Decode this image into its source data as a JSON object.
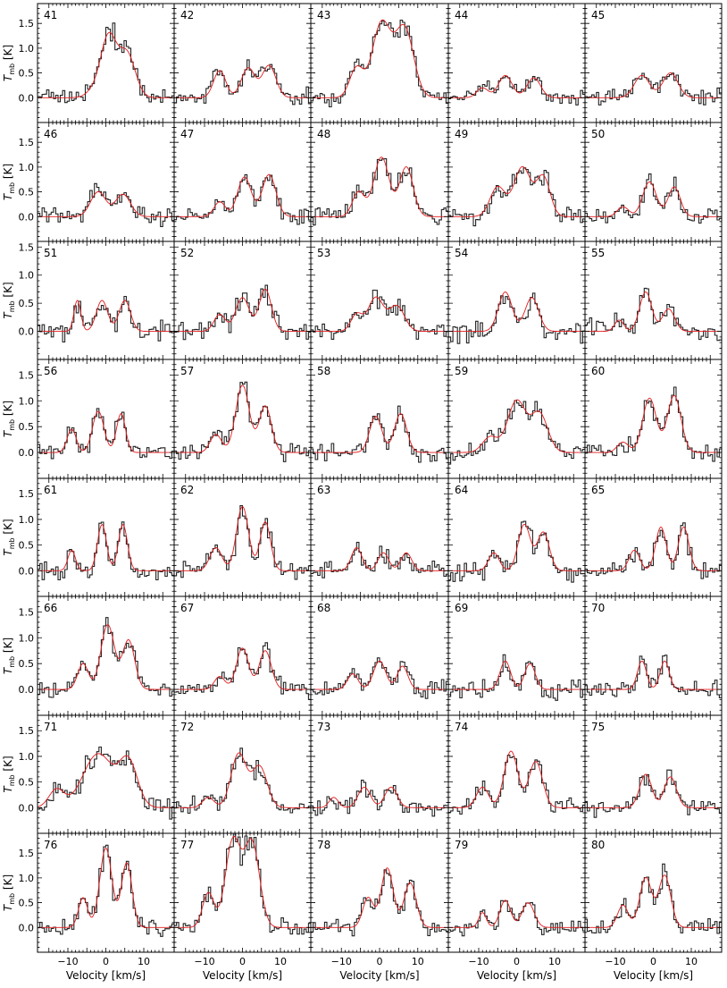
{
  "chart_data": {
    "type": "line",
    "layout": {
      "rows": 8,
      "cols": 5
    },
    "panels": [
      {
        "id": "41",
        "ylim": [
          -0.5,
          1.9
        ],
        "peaks": [
          [
            1.2,
            0.7,
            2.0
          ],
          [
            0.9,
            5.5,
            2.2
          ],
          [
            0.15,
            -3,
            2
          ]
        ]
      },
      {
        "id": "42",
        "ylim": [
          -0.5,
          1.9
        ],
        "peaks": [
          [
            0.55,
            -6,
            1.6
          ],
          [
            0.6,
            1.5,
            1.8
          ],
          [
            0.65,
            7,
            1.8
          ]
        ]
      },
      {
        "id": "43",
        "ylim": [
          -0.5,
          1.9
        ],
        "peaks": [
          [
            1.5,
            0.5,
            2.4
          ],
          [
            1.4,
            6.5,
            2.4
          ],
          [
            0.6,
            -6,
            1.8
          ]
        ]
      },
      {
        "id": "44",
        "ylim": [
          -0.5,
          1.9
        ],
        "peaks": [
          [
            0.45,
            -3,
            1.8
          ],
          [
            0.4,
            4.5,
            1.8
          ],
          [
            0.2,
            -9,
            1.5
          ]
        ]
      },
      {
        "id": "45",
        "ylim": [
          -0.5,
          1.9
        ],
        "peaks": [
          [
            0.45,
            -3,
            2.0
          ],
          [
            0.5,
            4.5,
            2.0
          ]
        ]
      },
      {
        "id": "46",
        "ylim": [
          -0.5,
          1.9
        ],
        "peaks": [
          [
            0.5,
            -2,
            2.0
          ],
          [
            0.45,
            4.5,
            2.0
          ]
        ]
      },
      {
        "id": "47",
        "ylim": [
          -0.5,
          1.9
        ],
        "peaks": [
          [
            0.8,
            0.5,
            1.8
          ],
          [
            0.85,
            7,
            1.8
          ],
          [
            0.3,
            -6,
            1.5
          ]
        ]
      },
      {
        "id": "48",
        "ylim": [
          -0.5,
          1.9
        ],
        "peaks": [
          [
            1.2,
            0.5,
            2.0
          ],
          [
            1.0,
            7,
            1.8
          ],
          [
            0.5,
            -5.5,
            1.6
          ]
        ]
      },
      {
        "id": "49",
        "ylim": [
          -0.5,
          1.9
        ],
        "peaks": [
          [
            0.6,
            -5,
            2.0
          ],
          [
            1.0,
            1.5,
            2.2
          ],
          [
            0.8,
            7,
            1.8
          ]
        ]
      },
      {
        "id": "50",
        "ylim": [
          -0.5,
          1.9
        ],
        "peaks": [
          [
            0.7,
            -1,
            1.8
          ],
          [
            0.6,
            5.5,
            1.6
          ],
          [
            0.2,
            -8,
            1.5
          ]
        ]
      },
      {
        "id": "51",
        "ylim": [
          -0.5,
          1.6
        ],
        "peaks": [
          [
            0.55,
            -7.5,
            0.9
          ],
          [
            0.55,
            -1,
            1.5
          ],
          [
            0.55,
            5,
            1.5
          ]
        ]
      },
      {
        "id": "52",
        "ylim": [
          -0.5,
          1.6
        ],
        "peaks": [
          [
            0.6,
            0,
            1.8
          ],
          [
            0.75,
            6,
            1.6
          ],
          [
            0.3,
            -6,
            1.5
          ]
        ]
      },
      {
        "id": "53",
        "ylim": [
          -0.5,
          1.6
        ],
        "peaks": [
          [
            0.6,
            -1,
            2.0
          ],
          [
            0.45,
            4.5,
            2.0
          ],
          [
            0.3,
            -6,
            1.5
          ]
        ]
      },
      {
        "id": "54",
        "ylim": [
          -0.5,
          1.6
        ],
        "peaks": [
          [
            0.7,
            -3,
            1.8
          ],
          [
            0.6,
            4,
            1.8
          ]
        ]
      },
      {
        "id": "55",
        "ylim": [
          -0.5,
          1.6
        ],
        "peaks": [
          [
            0.7,
            -2,
            1.6
          ],
          [
            0.4,
            4,
            1.6
          ],
          [
            0.2,
            -9,
            1.2
          ]
        ]
      },
      {
        "id": "56",
        "ylim": [
          -0.5,
          1.8
        ],
        "peaks": [
          [
            0.45,
            -9,
            1.2
          ],
          [
            0.8,
            -2,
            1.5
          ],
          [
            0.75,
            4,
            1.2
          ]
        ]
      },
      {
        "id": "57",
        "ylim": [
          -0.5,
          1.8
        ],
        "peaks": [
          [
            1.3,
            0,
            1.8
          ],
          [
            0.9,
            6,
            1.6
          ],
          [
            0.35,
            -7,
            1.5
          ]
        ]
      },
      {
        "id": "58",
        "ylim": [
          -0.5,
          1.8
        ],
        "peaks": [
          [
            0.7,
            -1,
            1.6
          ],
          [
            0.75,
            5.5,
            1.6
          ]
        ]
      },
      {
        "id": "59",
        "ylim": [
          -0.5,
          1.8
        ],
        "peaks": [
          [
            1.0,
            0,
            2.4
          ],
          [
            0.75,
            6,
            2.2
          ],
          [
            0.3,
            -7,
            2.0
          ]
        ]
      },
      {
        "id": "60",
        "ylim": [
          -0.5,
          1.8
        ],
        "peaks": [
          [
            1.05,
            -1,
            1.8
          ],
          [
            1.1,
            5.5,
            1.8
          ],
          [
            0.2,
            -8,
            1.5
          ]
        ]
      },
      {
        "id": "61",
        "ylim": [
          -0.5,
          1.8
        ],
        "peaks": [
          [
            0.9,
            -1,
            1.2
          ],
          [
            0.9,
            4.5,
            1.2
          ],
          [
            0.4,
            -9,
            1.0
          ]
        ]
      },
      {
        "id": "62",
        "ylim": [
          -0.5,
          1.8
        ],
        "peaks": [
          [
            1.25,
            0,
            1.6
          ],
          [
            0.95,
            6,
            1.4
          ],
          [
            0.45,
            -7,
            1.6
          ]
        ]
      },
      {
        "id": "63",
        "ylim": [
          -0.5,
          1.8
        ],
        "peaks": [
          [
            0.45,
            -6,
            1.4
          ],
          [
            0.35,
            1,
            1.4
          ],
          [
            0.35,
            7,
            1.4
          ]
        ]
      },
      {
        "id": "64",
        "ylim": [
          -0.5,
          1.8
        ],
        "peaks": [
          [
            0.35,
            -6,
            1.4
          ],
          [
            0.9,
            2,
            1.6
          ],
          [
            0.75,
            7,
            1.6
          ]
        ]
      },
      {
        "id": "65",
        "ylim": [
          -0.5,
          1.8
        ],
        "peaks": [
          [
            0.4,
            -5,
            1.4
          ],
          [
            0.85,
            2,
            1.4
          ],
          [
            0.85,
            8,
            1.4
          ]
        ]
      },
      {
        "id": "66",
        "ylim": [
          -0.5,
          1.8
        ],
        "peaks": [
          [
            1.25,
            0.5,
            1.8
          ],
          [
            0.95,
            6,
            1.6
          ],
          [
            0.5,
            -6,
            1.4
          ]
        ]
      },
      {
        "id": "67",
        "ylim": [
          -0.5,
          1.8
        ],
        "peaks": [
          [
            0.8,
            0,
            1.6
          ],
          [
            0.75,
            6,
            1.6
          ],
          [
            0.25,
            -6,
            1.4
          ]
        ]
      },
      {
        "id": "68",
        "ylim": [
          -0.5,
          1.8
        ],
        "peaks": [
          [
            0.3,
            -7,
            1.4
          ],
          [
            0.55,
            0,
            1.6
          ],
          [
            0.45,
            6,
            1.4
          ]
        ]
      },
      {
        "id": "69",
        "ylim": [
          -0.5,
          1.8
        ],
        "peaks": [
          [
            0.55,
            -3,
            1.4
          ],
          [
            0.5,
            3.5,
            1.4
          ]
        ]
      },
      {
        "id": "70",
        "ylim": [
          -0.5,
          1.8
        ],
        "peaks": [
          [
            0.55,
            -3,
            1.2
          ],
          [
            0.55,
            3,
            1.2
          ]
        ]
      },
      {
        "id": "71",
        "ylim": [
          -0.5,
          1.8
        ],
        "peaks": [
          [
            1.05,
            -2,
            4.0
          ],
          [
            0.85,
            6,
            2.4
          ],
          [
            0.35,
            -13,
            2.0
          ]
        ]
      },
      {
        "id": "72",
        "ylim": [
          -0.5,
          1.8
        ],
        "peaks": [
          [
            1.05,
            -1,
            2.0
          ],
          [
            0.8,
            4.5,
            2.0
          ],
          [
            0.2,
            -9,
            1.5
          ]
        ]
      },
      {
        "id": "73",
        "ylim": [
          -0.5,
          1.8
        ],
        "peaks": [
          [
            0.4,
            -4,
            1.6
          ],
          [
            0.4,
            3,
            1.6
          ],
          [
            0.2,
            -12,
            1.2
          ]
        ]
      },
      {
        "id": "74",
        "ylim": [
          -0.5,
          1.8
        ],
        "peaks": [
          [
            0.4,
            -9,
            1.6
          ],
          [
            1.1,
            -1.5,
            1.8
          ],
          [
            0.9,
            5,
            1.8
          ]
        ]
      },
      {
        "id": "75",
        "ylim": [
          -0.5,
          1.8
        ],
        "peaks": [
          [
            0.65,
            -2,
            1.6
          ],
          [
            0.6,
            4.5,
            1.6
          ]
        ]
      },
      {
        "id": "76",
        "ylim": [
          -0.5,
          1.9
        ],
        "peaks": [
          [
            1.6,
            0,
            1.6
          ],
          [
            1.3,
            5.5,
            1.4
          ],
          [
            0.6,
            -6,
            1.2
          ]
        ]
      },
      {
        "id": "77",
        "ylim": [
          -0.5,
          1.9
        ],
        "peaks": [
          [
            1.75,
            -2.5,
            2.0
          ],
          [
            1.7,
            2.5,
            2.0
          ],
          [
            0.7,
            -9,
            1.5
          ]
        ]
      },
      {
        "id": "78",
        "ylim": [
          -0.5,
          1.9
        ],
        "peaks": [
          [
            0.6,
            -3,
            1.4
          ],
          [
            1.2,
            2,
            1.6
          ],
          [
            0.9,
            8,
            1.6
          ]
        ]
      },
      {
        "id": "79",
        "ylim": [
          -0.5,
          1.9
        ],
        "peaks": [
          [
            0.55,
            -3,
            1.4
          ],
          [
            0.5,
            3,
            1.6
          ],
          [
            0.3,
            -9,
            1.0
          ]
        ]
      },
      {
        "id": "80",
        "ylim": [
          -0.5,
          1.9
        ],
        "peaks": [
          [
            1.0,
            -2,
            1.6
          ],
          [
            1.05,
            3,
            1.6
          ],
          [
            0.45,
            -8,
            1.4
          ]
        ]
      }
    ],
    "xlim": [
      -18,
      18
    ],
    "xticks": [
      -10,
      0,
      10
    ],
    "xtick_labels": [
      "−10",
      "0",
      "10"
    ],
    "yticks": [
      0,
      0.5,
      1.0,
      1.5
    ],
    "ytick_labels": [
      "0.0",
      "0.5",
      "1.0",
      "1.5"
    ],
    "xlabel": "Velocity [km/s]",
    "ylabel": {
      "main": "T",
      "sub": "mb",
      "unit": "[K]"
    },
    "series_colors": {
      "observed": "#222222",
      "fit": "#e41a1c"
    },
    "grid": false
  }
}
